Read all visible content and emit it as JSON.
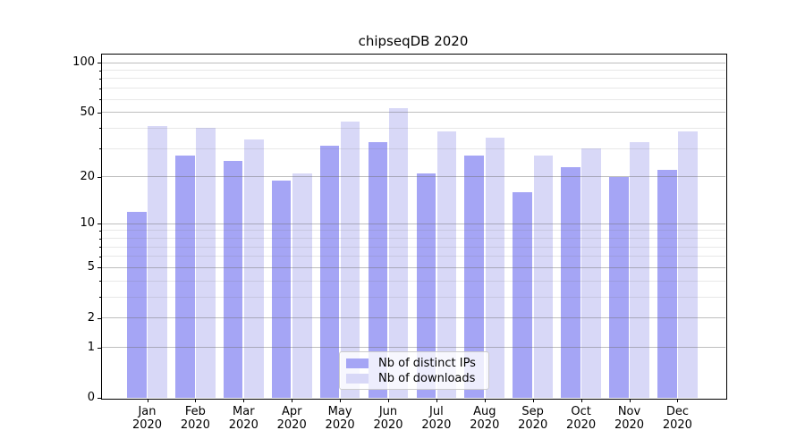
{
  "title": "chipseqDB 2020",
  "chart_data": {
    "type": "bar",
    "title": "chipseqDB 2020",
    "categories": [
      "Jan",
      "Feb",
      "Mar",
      "Apr",
      "May",
      "Jun",
      "Jul",
      "Aug",
      "Sep",
      "Oct",
      "Nov",
      "Dec"
    ],
    "year": "2020",
    "series": [
      {
        "name": "Nb of distinct IPs",
        "color": "#a5a5f5",
        "values": [
          12,
          27,
          25,
          19,
          31,
          33,
          21,
          27,
          16,
          23,
          20,
          22
        ]
      },
      {
        "name": "Nb of downloads",
        "color": "#d8d8f7",
        "values": [
          41,
          40,
          34,
          21,
          44,
          53,
          38,
          35,
          27,
          30,
          33,
          38
        ]
      }
    ],
    "xlabel": "",
    "ylabel": "",
    "yscale": "log10(1+x)",
    "ylim": [
      0,
      113
    ],
    "y_major_ticks": [
      0,
      1,
      2,
      5,
      10,
      20,
      50,
      100
    ],
    "y_minor_ticks": [
      3,
      4,
      6,
      7,
      8,
      9,
      30,
      40,
      60,
      70,
      80,
      90
    ],
    "grid": "on",
    "legend_position": "lower center"
  }
}
